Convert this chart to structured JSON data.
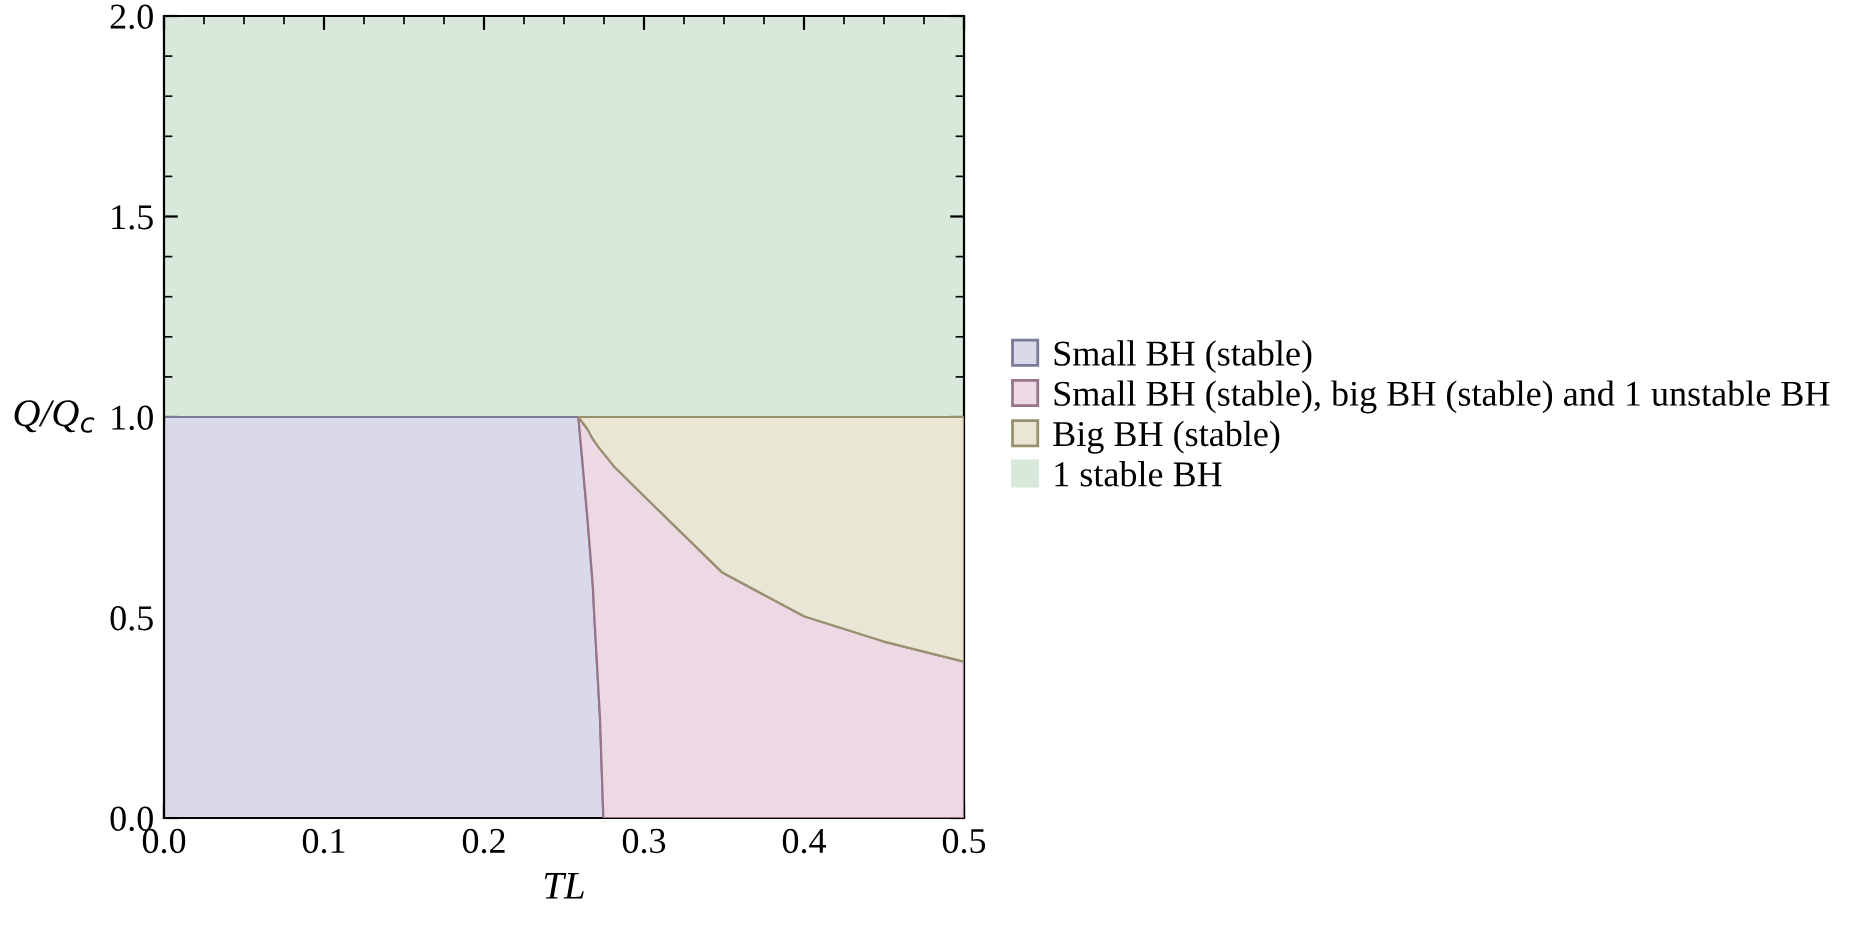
{
  "chart_data": {
    "type": "area",
    "stacked": true,
    "xlabel": "TL",
    "ylabel": "Q/Q$_{c}$",
    "x": [
      0,
      0.259,
      0.2646,
      0.268,
      0.269,
      0.2725,
      0.2746,
      0.281,
      0.3,
      0.349,
      0.4,
      0.45,
      0.5
    ],
    "series": [
      {
        "name": "Small BH (stable)",
        "color": "#d9d9ea",
        "values": [
          1,
          1,
          0.75,
          0.58,
          0.5,
          0.25,
          0,
          null,
          null,
          null,
          null,
          null,
          null
        ]
      },
      {
        "name": "Small BH (stable), big BH (stable) and 1 unstable BH",
        "color": "#ecd9e4",
        "values": [
          null,
          0,
          0.22,
          0.365,
          0.44,
          0.67,
          0.91,
          0.878,
          0.803,
          0.612,
          0.503,
          0.44,
          0.39
        ]
      },
      {
        "name": "Big BH (stable)",
        "color": "#eae6d6",
        "values": [
          null,
          0,
          0.03,
          0.055,
          0.06,
          0.08,
          0.09,
          0.122,
          0.197,
          0.388,
          0.497,
          0.56,
          0.61
        ]
      }
    ],
    "bands": [
      {
        "axis": "y",
        "from": 1,
        "to": 2,
        "label": "1 stable BH",
        "color": "#d8e9dc"
      }
    ],
    "xlim": [
      0,
      0.5
    ],
    "ylim": [
      0,
      2
    ],
    "xticks": [
      {
        "value": 0,
        "label": "0.0"
      },
      0.1,
      0.2,
      0.3,
      0.4,
      0.5
    ],
    "yticks": [
      {
        "value": 0,
        "label": "0.0"
      },
      0.5,
      {
        "value": 1,
        "label": "1.0"
      },
      1.5,
      {
        "value": 2,
        "label": "2.0"
      }
    ],
    "grid": false,
    "legend": "right"
  }
}
